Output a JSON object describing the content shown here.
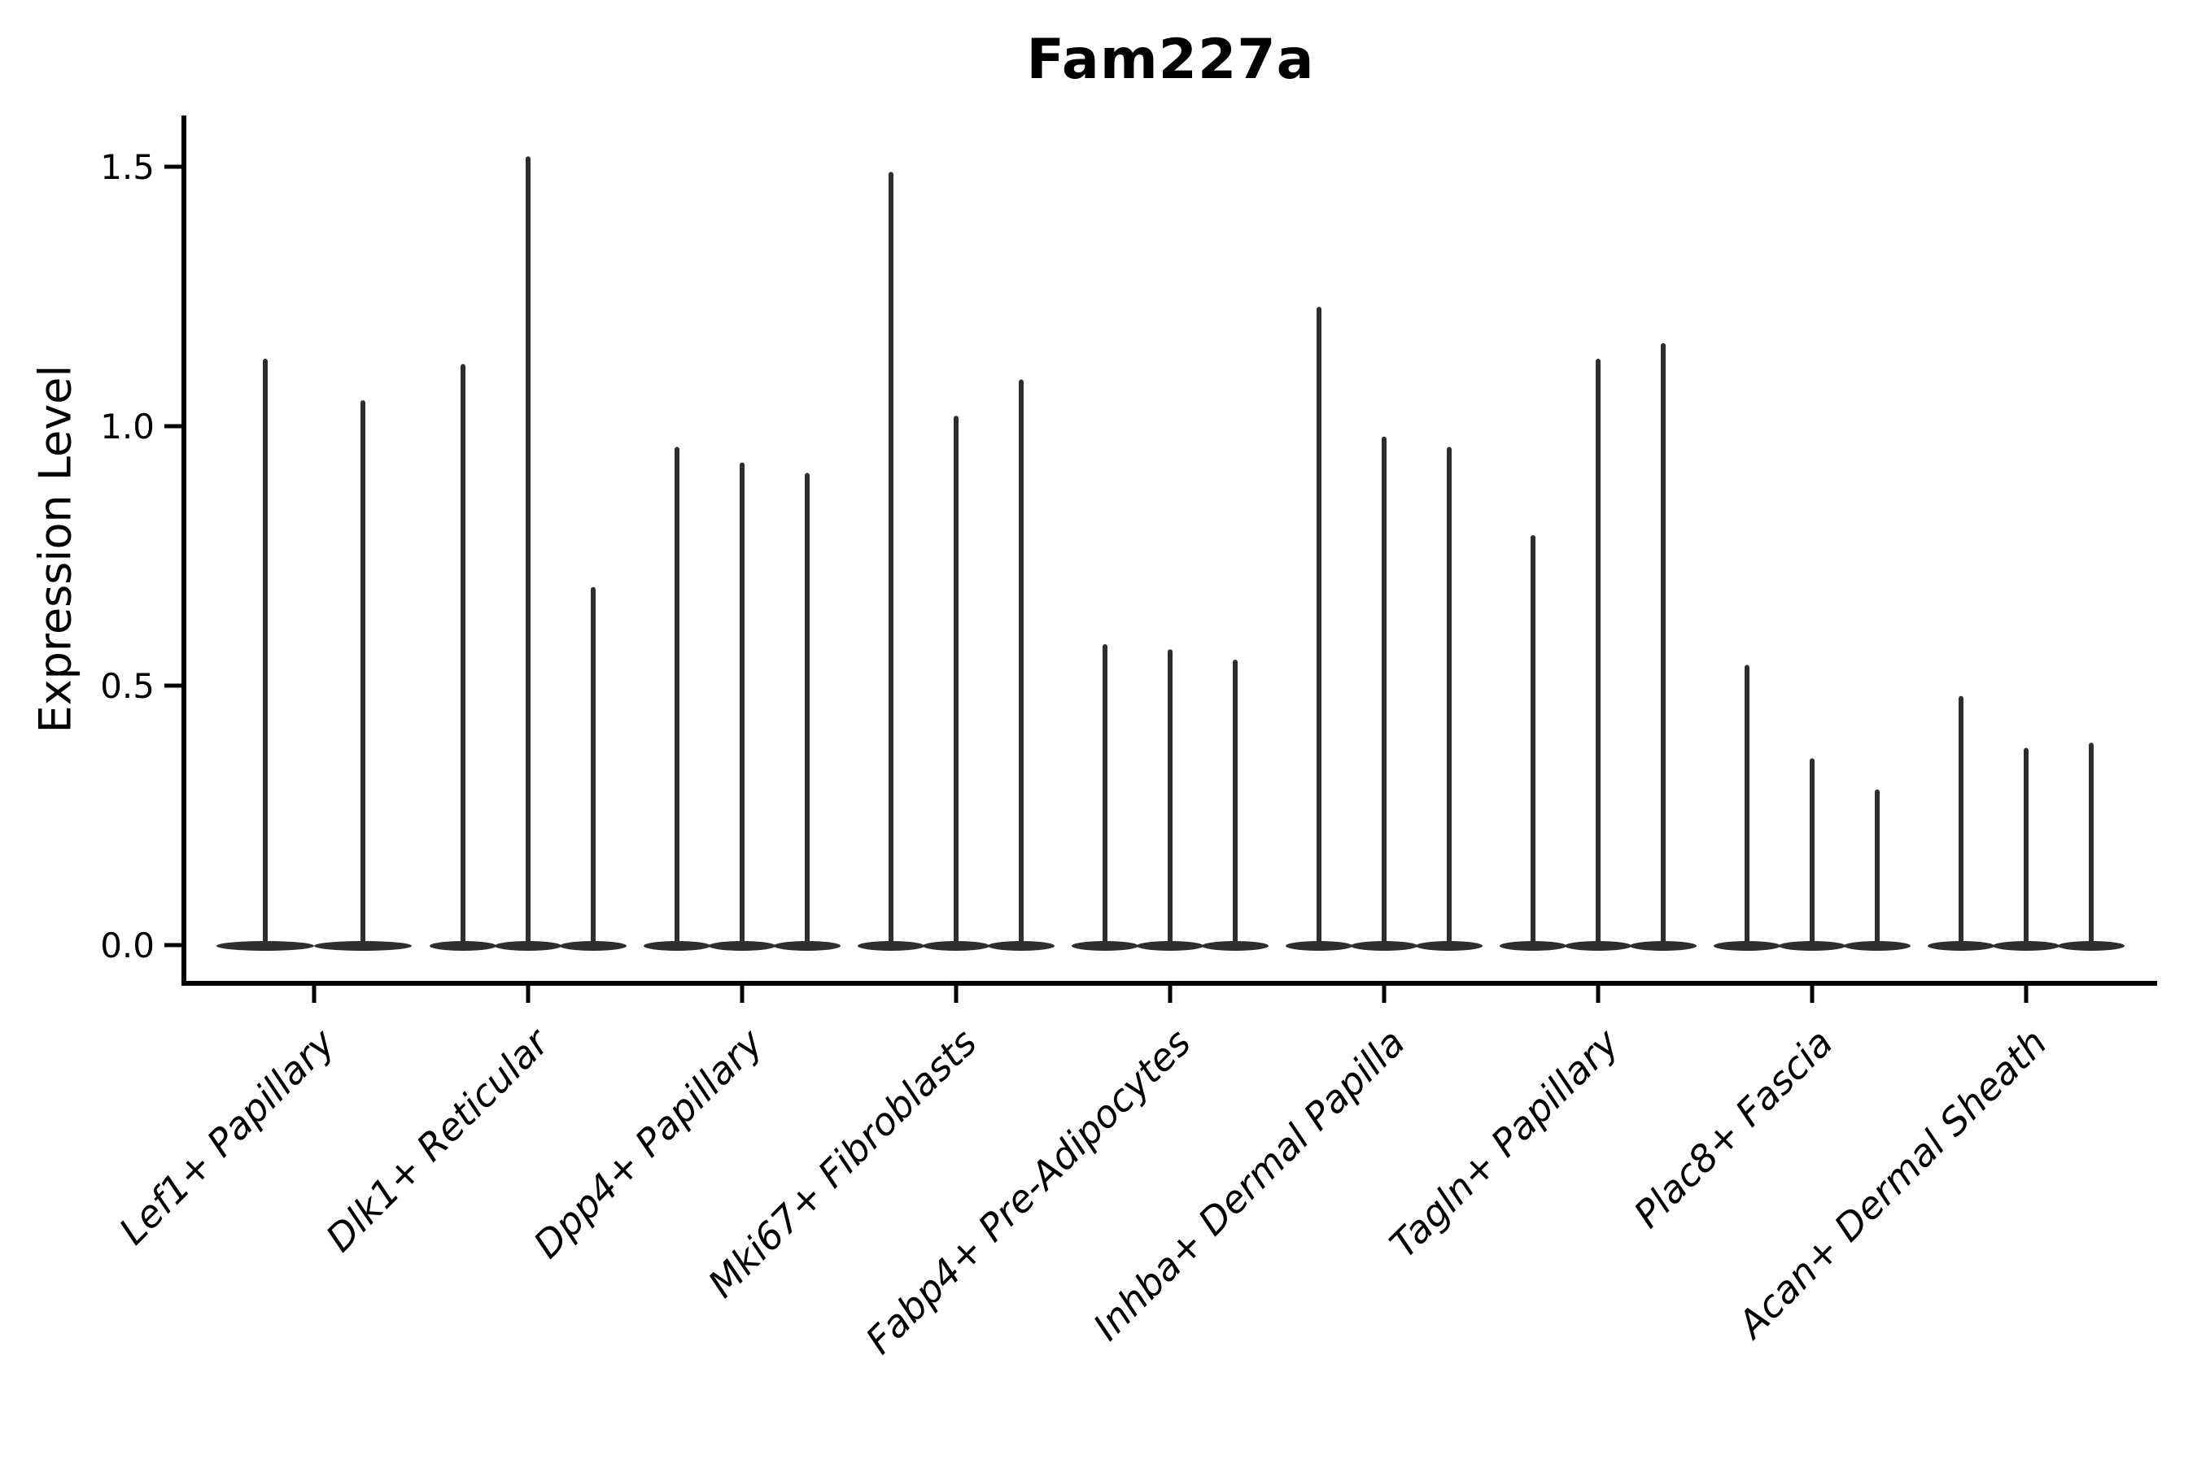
{
  "chart_data": {
    "type": "violin",
    "title": "Fam227a",
    "xlabel": "",
    "ylabel": "Expression Level",
    "ylim": [
      -0.07,
      1.6
    ],
    "grid": false,
    "legend": null,
    "yticks": [
      0.0,
      0.5,
      1.0,
      1.5
    ],
    "ytick_labels": [
      "0.0",
      "0.5",
      "1.0",
      "1.5"
    ],
    "violin_color": "#2e2e2e",
    "axis_color": "#000000",
    "categories": [
      "Lef1+ Papillary",
      "Dlk1+ Reticular",
      "Dpp4+ Papillary",
      "Mki67+ Fibroblasts",
      "Fabp4+ Pre-Adipocytes",
      "Inhba+ Dermal Papilla",
      "Tagln+ Papillary",
      "Plac8+ Fascia",
      "Acan+ Dermal Sheath"
    ],
    "groups": [
      {
        "label": "Lef1+ Papillary",
        "violin_maxima": [
          1.13,
          1.05
        ]
      },
      {
        "label": "Dlk1+ Reticular",
        "violin_maxima": [
          1.12,
          1.52,
          0.69
        ]
      },
      {
        "label": "Dpp4+ Papillary",
        "violin_maxima": [
          0.96,
          0.93,
          0.91
        ]
      },
      {
        "label": "Mki67+ Fibroblasts",
        "violin_maxima": [
          1.49,
          1.02,
          1.09
        ]
      },
      {
        "label": "Fabp4+ Pre-Adipocytes",
        "violin_maxima": [
          0.58,
          0.57,
          0.55
        ]
      },
      {
        "label": "Inhba+ Dermal Papilla",
        "violin_maxima": [
          1.23,
          0.98,
          0.96
        ]
      },
      {
        "label": "Tagln+ Papillary",
        "violin_maxima": [
          0.79,
          1.13,
          1.16
        ]
      },
      {
        "label": "Plac8+ Fascia",
        "violin_maxima": [
          0.54,
          0.36,
          0.3
        ]
      },
      {
        "label": "Acan+ Dermal Sheath",
        "violin_maxima": [
          0.48,
          0.38,
          0.39
        ]
      }
    ],
    "baseline_value": 0.0
  }
}
